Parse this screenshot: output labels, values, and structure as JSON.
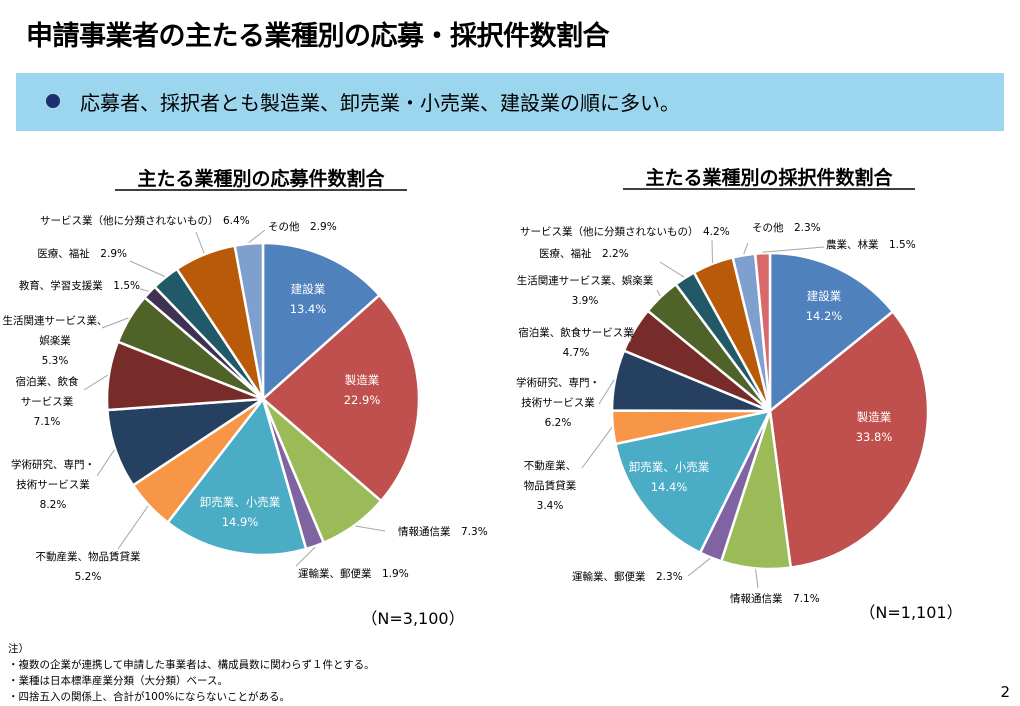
{
  "title": "申請事業者の主たる業種別の応募・採択件数割合",
  "banner": "応募者、採択者とも製造業、卸売業・小売業、建設業の順に多い。",
  "colors": {
    "construction": "#4f81bd",
    "manufacturing": "#c0504d",
    "information": "#9bbb59",
    "transport": "#8064a2",
    "wholesale_retail": "#4bacc6",
    "real_estate": "#f79646",
    "academic": "#254061",
    "accommodation": "#772c2a",
    "living": "#4f6228",
    "education": "#3f3151",
    "medical": "#215968",
    "services": "#b85a08",
    "other": "#7f9fcf",
    "agriculture": "#d9686a"
  },
  "chart_data": [
    {
      "type": "pie",
      "title": "主たる業種別の応募件数割合",
      "n_label": "（N=3,100）",
      "unit": "%",
      "slices": [
        {
          "label": "建設業",
          "value": 13.4,
          "value_label": "13.4%",
          "color": "#4f81bd"
        },
        {
          "label": "製造業",
          "value": 22.9,
          "value_label": "22.9%",
          "color": "#c0504d"
        },
        {
          "label": "情報通信業",
          "value": 7.3,
          "value_label": "7.3%",
          "color": "#9bbb59"
        },
        {
          "label": "運輸業、郵便業",
          "value": 1.9,
          "value_label": "1.9%",
          "color": "#8064a2"
        },
        {
          "label": "卸売業、小売業",
          "value": 14.9,
          "value_label": "14.9%",
          "color": "#4bacc6"
        },
        {
          "label": "不動産業、物品賃貸業",
          "value": 5.2,
          "value_label": "5.2%",
          "color": "#f79646"
        },
        {
          "label": "学術研究、専門・技術サービス業",
          "value": 8.2,
          "value_label": "8.2%",
          "color": "#254061"
        },
        {
          "label": "宿泊業、飲食サービス業",
          "value": 7.1,
          "value_label": "7.1%",
          "color": "#772c2a"
        },
        {
          "label": "生活関連サービス業、娯楽業",
          "value": 5.3,
          "value_label": "5.3%",
          "color": "#4f6228"
        },
        {
          "label": "教育、学習支援業",
          "value": 1.5,
          "value_label": "1.5%",
          "color": "#3f3151"
        },
        {
          "label": "医療、福祉",
          "value": 2.9,
          "value_label": "2.9%",
          "color": "#215968"
        },
        {
          "label": "サービス業（他に分類されないもの）",
          "value": 6.4,
          "value_label": "6.4%",
          "color": "#b85a08"
        },
        {
          "label": "その他",
          "value": 2.9,
          "value_label": "2.9%",
          "color": "#7f9fcf"
        }
      ]
    },
    {
      "type": "pie",
      "title": "主たる業種別の採択件数割合",
      "n_label": "（N=1,101）",
      "unit": "%",
      "slices": [
        {
          "label": "建設業",
          "value": 14.2,
          "value_label": "14.2%",
          "color": "#4f81bd"
        },
        {
          "label": "製造業",
          "value": 33.8,
          "value_label": "33.8%",
          "color": "#c0504d"
        },
        {
          "label": "情報通信業",
          "value": 7.1,
          "value_label": "7.1%",
          "color": "#9bbb59"
        },
        {
          "label": "運輸業、郵便業",
          "value": 2.3,
          "value_label": "2.3%",
          "color": "#8064a2"
        },
        {
          "label": "卸売業、小売業",
          "value": 14.4,
          "value_label": "14.4%",
          "color": "#4bacc6"
        },
        {
          "label": "不動産業、物品賃貸業",
          "value": 3.4,
          "value_label": "3.4%",
          "color": "#f79646"
        },
        {
          "label": "学術研究、専門・技術サービス業",
          "value": 6.2,
          "value_label": "6.2%",
          "color": "#254061"
        },
        {
          "label": "宿泊業、飲食サービス業",
          "value": 4.7,
          "value_label": "4.7%",
          "color": "#772c2a"
        },
        {
          "label": "生活関連サービス業、娯楽業",
          "value": 3.9,
          "value_label": "3.9%",
          "color": "#4f6228"
        },
        {
          "label": "医療、福祉",
          "value": 2.2,
          "value_label": "2.2%",
          "color": "#215968"
        },
        {
          "label": "サービス業（他に分類されないもの）",
          "value": 4.2,
          "value_label": "4.2%",
          "color": "#b85a08"
        },
        {
          "label": "その他",
          "value": 2.3,
          "value_label": "2.3%",
          "color": "#7f9fcf"
        },
        {
          "label": "農業、林業",
          "value": 1.5,
          "value_label": "1.5%",
          "color": "#d9686a"
        }
      ]
    }
  ],
  "notes": {
    "heading": "注）",
    "items": [
      "・複数の企業が連携して申請した事業者は、構成員数に関わらず１件とする。",
      "・業種は日本標準産業分類（大分類）ベース。",
      "・四捨五入の関係上、合計が100%にならないことがある。"
    ]
  },
  "page_number": "2"
}
